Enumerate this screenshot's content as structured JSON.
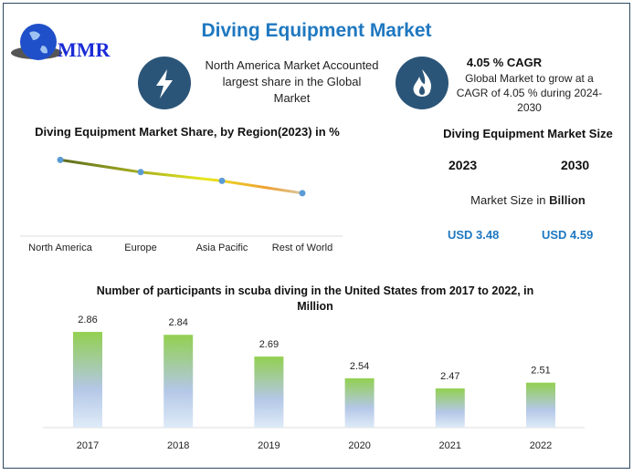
{
  "title": "Diving Equipment Market",
  "logo_text": "MMR",
  "highlight1": {
    "icon": "lightning-icon",
    "text": "North America Market Accounted largest share in the Global Market"
  },
  "highlight2": {
    "icon": "flame-icon",
    "heading": "4.05 % CAGR",
    "text": "Global Market to grow at a CAGR of 4.05 % during 2024-2030"
  },
  "market_size": {
    "title": "Diving Equipment Market Size",
    "year1": "2023",
    "year2": "2030",
    "unit_prefix": "Market Size in ",
    "unit_bold": "Billion",
    "value1": "USD 3.48",
    "value2": "USD 4.59"
  },
  "colors": {
    "accent": "#1f78c0",
    "icon_bg": "#2b5578",
    "bar_top": "#92d050",
    "bar_bottom": "#bdd7ee",
    "point": "#5b9bd5"
  },
  "chart_data": [
    {
      "type": "line",
      "title": "Diving Equipment Market Share, by Region(2023) in %",
      "categories": [
        "North America",
        "Europe",
        "Asia Pacific",
        "Rest of World"
      ],
      "values": [
        42,
        35,
        30,
        23
      ],
      "ylim": [
        0,
        50
      ],
      "grid": false
    },
    {
      "type": "bar",
      "title": "Number of participants in scuba diving in the United States from 2017 to 2022, in Million",
      "categories": [
        "2017",
        "2018",
        "2019",
        "2020",
        "2021",
        "2022"
      ],
      "values": [
        2.86,
        2.84,
        2.69,
        2.54,
        2.47,
        2.51
      ],
      "ylim": [
        2.2,
        2.9
      ],
      "grid": false
    }
  ]
}
